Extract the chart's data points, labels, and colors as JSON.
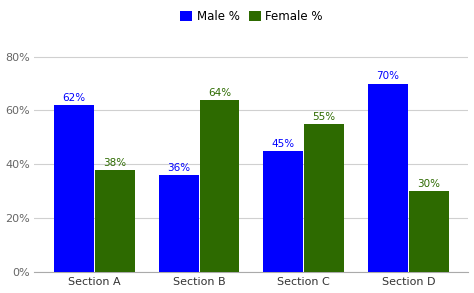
{
  "categories": [
    "Section A",
    "Section B",
    "Section C",
    "Section D"
  ],
  "male_values": [
    0.62,
    0.36,
    0.45,
    0.7
  ],
  "female_values": [
    0.38,
    0.64,
    0.55,
    0.3
  ],
  "male_labels": [
    "62%",
    "36%",
    "45%",
    "70%"
  ],
  "female_labels": [
    "38%",
    "64%",
    "55%",
    "30%"
  ],
  "male_color": "#0000ff",
  "female_color": "#2d6a00",
  "male_legend": "Male %",
  "female_legend": "Female %",
  "ylim": [
    0,
    0.88
  ],
  "yticks": [
    0,
    0.2,
    0.4,
    0.6,
    0.8
  ],
  "ytick_labels": [
    "0%",
    "20%",
    "40%",
    "60%",
    "80%"
  ],
  "background_color": "#ffffff",
  "bar_width": 0.38,
  "bar_gap": 0.01,
  "label_fontsize": 7.5,
  "tick_fontsize": 8,
  "legend_fontsize": 8.5
}
